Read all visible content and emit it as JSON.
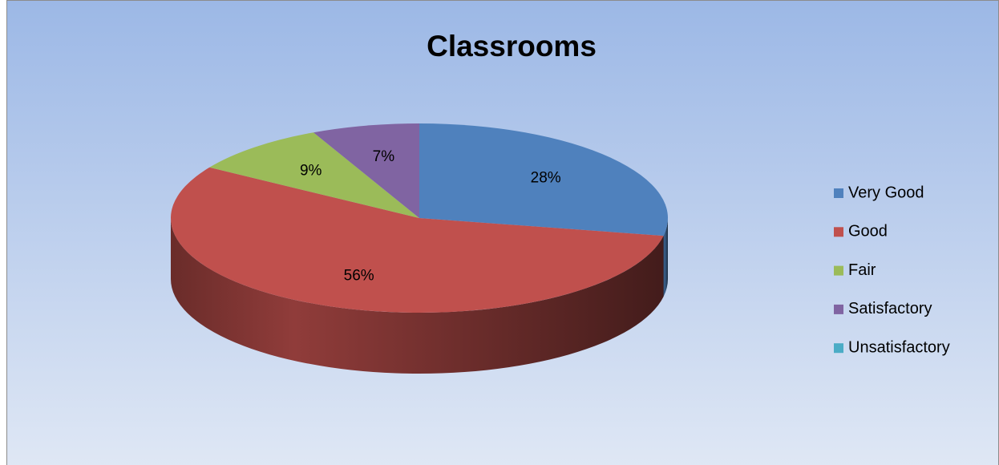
{
  "chart_data": {
    "type": "pie",
    "title": "Classrooms",
    "categories": [
      "Very Good",
      "Good",
      "Fair",
      "Satisfactory",
      "Unsatisfactory"
    ],
    "values": [
      28,
      56,
      9,
      7,
      0
    ],
    "value_labels": [
      "28%",
      "56%",
      "9%",
      "7%",
      null
    ],
    "colors": [
      "#4f81bd",
      "#c0504d",
      "#9bbb59",
      "#8064a2",
      "#4bacc6"
    ],
    "legend": "right"
  }
}
